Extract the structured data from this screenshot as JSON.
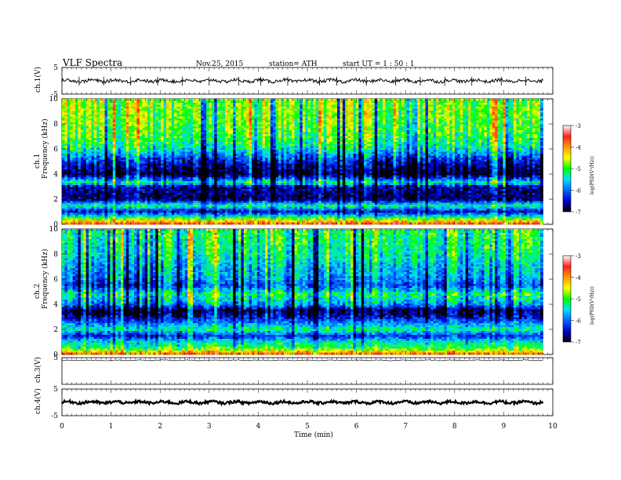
{
  "header": {
    "title": "VLF  Spectra",
    "date": "Nov.25, 2015",
    "station": "station= ATH",
    "start": "start  UT  =   1  : 50 : 1"
  },
  "colorbar": {
    "label": "log(PSD(V²/Hz))",
    "ticks": [
      "-3",
      "-4",
      "-5",
      "-6",
      "-7"
    ],
    "colors": [
      "#ffffff",
      "#ff2020",
      "#ff9900",
      "#ffff00",
      "#00ff00",
      "#00e0ff",
      "#0066ff",
      "#0000d0",
      "#000000"
    ]
  },
  "chart_data": [
    {
      "type": "line",
      "name": "ch1-waveform",
      "ylabel": "ch.1(V)",
      "yticks": [
        "5",
        "-5"
      ],
      "ylim": [
        -5,
        5
      ],
      "x_range": [
        0,
        9.8
      ],
      "baseline_v": 0.0,
      "spike_times_min": [
        0.35,
        0.85,
        1.4,
        1.95,
        2.45,
        3.0,
        3.6,
        4.05,
        4.6,
        5.25,
        5.6,
        6.2,
        6.8,
        7.3,
        7.8,
        8.35,
        8.95,
        9.45
      ]
    },
    {
      "type": "heatmap",
      "name": "ch1-spectrogram",
      "ylabel": "ch.1",
      "ylabel2": "Frequency (kHz)",
      "yticks": [
        "0",
        "2",
        "4",
        "6",
        "8",
        "10"
      ],
      "ylim": [
        0,
        10
      ],
      "x_range": [
        0,
        9.8
      ],
      "zlim": [
        -7,
        -3
      ],
      "z_by_frequency_khz": [
        [
          0.1,
          -3.8
        ],
        [
          0.5,
          -5.0
        ],
        [
          1.0,
          -6.5
        ],
        [
          1.5,
          -5.2
        ],
        [
          2.0,
          -6.8
        ],
        [
          3.0,
          -6.6
        ],
        [
          3.3,
          -5.3
        ],
        [
          4.0,
          -7.0
        ],
        [
          5.0,
          -6.4
        ],
        [
          6.0,
          -5.4
        ],
        [
          7.0,
          -5.0
        ],
        [
          8.0,
          -4.9
        ],
        [
          9.0,
          -4.8
        ],
        [
          10.0,
          -4.8
        ]
      ]
    },
    {
      "type": "heatmap",
      "name": "ch2-spectrogram",
      "ylabel": "ch.2",
      "ylabel2": "Frequency (kHz)",
      "yticks": [
        "0",
        "2",
        "4",
        "6",
        "8",
        "10"
      ],
      "ylim": [
        0,
        10
      ],
      "x_range": [
        0,
        9.8
      ],
      "zlim": [
        -7,
        -3
      ],
      "z_by_frequency_khz": [
        [
          0.1,
          -3.9
        ],
        [
          0.5,
          -5.0
        ],
        [
          1.0,
          -5.4
        ],
        [
          1.5,
          -6.3
        ],
        [
          2.0,
          -5.2
        ],
        [
          3.0,
          -6.5
        ],
        [
          3.5,
          -6.9
        ],
        [
          4.0,
          -5.8
        ],
        [
          4.8,
          -5.2
        ],
        [
          5.5,
          -6.2
        ],
        [
          6.0,
          -5.8
        ],
        [
          7.0,
          -5.6
        ],
        [
          8.0,
          -5.3
        ],
        [
          9.0,
          -5.2
        ],
        [
          10.0,
          -5.1
        ]
      ]
    },
    {
      "type": "line",
      "name": "ch3-waveform",
      "ylabel": "ch.3(V)",
      "yticks": [
        "5"
      ],
      "ylim": [
        -5,
        5
      ],
      "x_range": [
        0,
        9.8
      ],
      "baseline_v": 4.0
    },
    {
      "type": "line",
      "name": "ch4-waveform",
      "ylabel": "ch.4(V)",
      "yticks": [
        "5",
        "-5"
      ],
      "ylim": [
        -5,
        5
      ],
      "x_range": [
        0,
        9.8
      ],
      "baseline_v": 0.0
    }
  ],
  "xaxis": {
    "label": "Time  (min)",
    "ticks": [
      "0",
      "1",
      "2",
      "3",
      "4",
      "5",
      "6",
      "7",
      "8",
      "9",
      "10"
    ],
    "xlim": [
      0,
      10
    ]
  }
}
